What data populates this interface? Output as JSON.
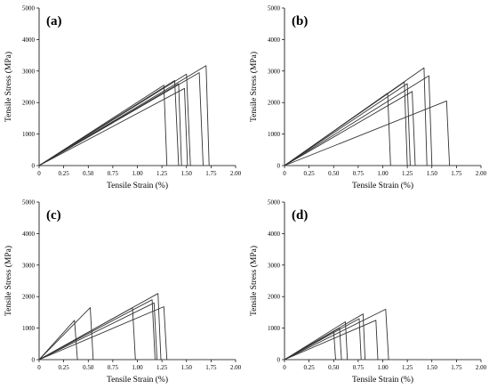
{
  "chart_data": [
    {
      "type": "line",
      "panel_label": "(a)",
      "xlabel": "Tensile Strain (%)",
      "ylabel": "Tensile Stress (MPa)",
      "xlim": [
        0,
        2.0
      ],
      "ylim": [
        0,
        5000
      ],
      "x_ticks": [
        "0",
        "0.25",
        "0.50",
        "0.75",
        "1.00",
        "1.25",
        "1.50",
        "1.75",
        "2.00"
      ],
      "y_ticks": [
        "0",
        "1000",
        "2000",
        "3000",
        "4000",
        "5000"
      ],
      "grid": false,
      "line_color": "#333333",
      "series": [
        {
          "x": [
            0,
            1.27,
            1.3
          ],
          "y": [
            0,
            2550,
            0
          ]
        },
        {
          "x": [
            0,
            1.38,
            1.42
          ],
          "y": [
            0,
            2700,
            0
          ]
        },
        {
          "x": [
            0,
            1.42,
            1.45
          ],
          "y": [
            0,
            2600,
            0
          ]
        },
        {
          "x": [
            0,
            1.5,
            1.54
          ],
          "y": [
            0,
            2900,
            0
          ]
        },
        {
          "x": [
            0,
            1.63,
            1.67
          ],
          "y": [
            0,
            2950,
            0
          ]
        },
        {
          "x": [
            0,
            1.7,
            1.73
          ],
          "y": [
            0,
            3170,
            0
          ]
        },
        {
          "x": [
            0,
            1.48,
            1.51
          ],
          "y": [
            0,
            2450,
            0
          ]
        }
      ]
    },
    {
      "type": "line",
      "panel_label": "(b)",
      "xlabel": "Tensile Strain (%)",
      "ylabel": "Tensile Stress (MPa)",
      "xlim": [
        0,
        2.0
      ],
      "ylim": [
        0,
        5000
      ],
      "x_ticks": [
        "0",
        "0.25",
        "0.50",
        "0.75",
        "1.00",
        "1.25",
        "1.50",
        "1.75",
        "2.00"
      ],
      "y_ticks": [
        "0",
        "1000",
        "2000",
        "3000",
        "4000",
        "5000"
      ],
      "grid": false,
      "line_color": "#333333",
      "series": [
        {
          "x": [
            0,
            1.05,
            1.08
          ],
          "y": [
            0,
            2300,
            0
          ]
        },
        {
          "x": [
            0,
            1.22,
            1.25
          ],
          "y": [
            0,
            2650,
            0
          ]
        },
        {
          "x": [
            0,
            1.25,
            1.28
          ],
          "y": [
            0,
            2600,
            0
          ]
        },
        {
          "x": [
            0,
            1.3,
            1.33
          ],
          "y": [
            0,
            2350,
            0
          ]
        },
        {
          "x": [
            0,
            1.42,
            1.45
          ],
          "y": [
            0,
            3100,
            0
          ]
        },
        {
          "x": [
            0,
            1.47,
            1.5
          ],
          "y": [
            0,
            2850,
            0
          ]
        },
        {
          "x": [
            0,
            1.65,
            1.68
          ],
          "y": [
            0,
            2050,
            0
          ]
        }
      ]
    },
    {
      "type": "line",
      "panel_label": "(c)",
      "xlabel": "Tensile Strain (%)",
      "ylabel": "Tensile Stress (MPa)",
      "xlim": [
        0,
        2.0
      ],
      "ylim": [
        0,
        5000
      ],
      "x_ticks": [
        "0",
        "0.25",
        "0.50",
        "0.75",
        "1.00",
        "1.25",
        "1.50",
        "1.75",
        "2.00"
      ],
      "y_ticks": [
        "0",
        "1000",
        "2000",
        "3000",
        "4000",
        "5000"
      ],
      "grid": false,
      "line_color": "#333333",
      "series": [
        {
          "x": [
            0,
            0.36,
            0.39
          ],
          "y": [
            0,
            1250,
            0
          ]
        },
        {
          "x": [
            0,
            0.52,
            0.55
          ],
          "y": [
            0,
            1650,
            0
          ]
        },
        {
          "x": [
            0,
            0.95,
            0.98
          ],
          "y": [
            0,
            1650,
            0
          ]
        },
        {
          "x": [
            0,
            1.15,
            1.18
          ],
          "y": [
            0,
            1900,
            0
          ]
        },
        {
          "x": [
            0,
            1.17,
            1.2
          ],
          "y": [
            0,
            1800,
            0
          ]
        },
        {
          "x": [
            0,
            1.21,
            1.24
          ],
          "y": [
            0,
            2100,
            0
          ]
        },
        {
          "x": [
            0,
            1.27,
            1.3
          ],
          "y": [
            0,
            1680,
            0
          ]
        }
      ]
    },
    {
      "type": "line",
      "panel_label": "(d)",
      "xlabel": "Tensile Strain (%)",
      "ylabel": "Tensile Stress (MPa)",
      "xlim": [
        0,
        2.0
      ],
      "ylim": [
        0,
        5000
      ],
      "x_ticks": [
        "0",
        "0.25",
        "0.50",
        "0.75",
        "1.00",
        "1.25",
        "1.50",
        "1.75",
        "2.00"
      ],
      "y_ticks": [
        "0",
        "1000",
        "2000",
        "3000",
        "4000",
        "5000"
      ],
      "grid": false,
      "line_color": "#333333",
      "series": [
        {
          "x": [
            0,
            0.5,
            0.52
          ],
          "y": [
            0,
            900,
            0
          ]
        },
        {
          "x": [
            0,
            0.56,
            0.58
          ],
          "y": [
            0,
            1000,
            0
          ]
        },
        {
          "x": [
            0,
            0.62,
            0.64
          ],
          "y": [
            0,
            1200,
            0
          ]
        },
        {
          "x": [
            0,
            0.76,
            0.78
          ],
          "y": [
            0,
            1300,
            0
          ]
        },
        {
          "x": [
            0,
            0.8,
            0.82
          ],
          "y": [
            0,
            1450,
            0
          ]
        },
        {
          "x": [
            0,
            0.93,
            0.95
          ],
          "y": [
            0,
            1250,
            0
          ]
        },
        {
          "x": [
            0,
            1.03,
            1.06
          ],
          "y": [
            0,
            1600,
            0
          ]
        }
      ]
    }
  ]
}
